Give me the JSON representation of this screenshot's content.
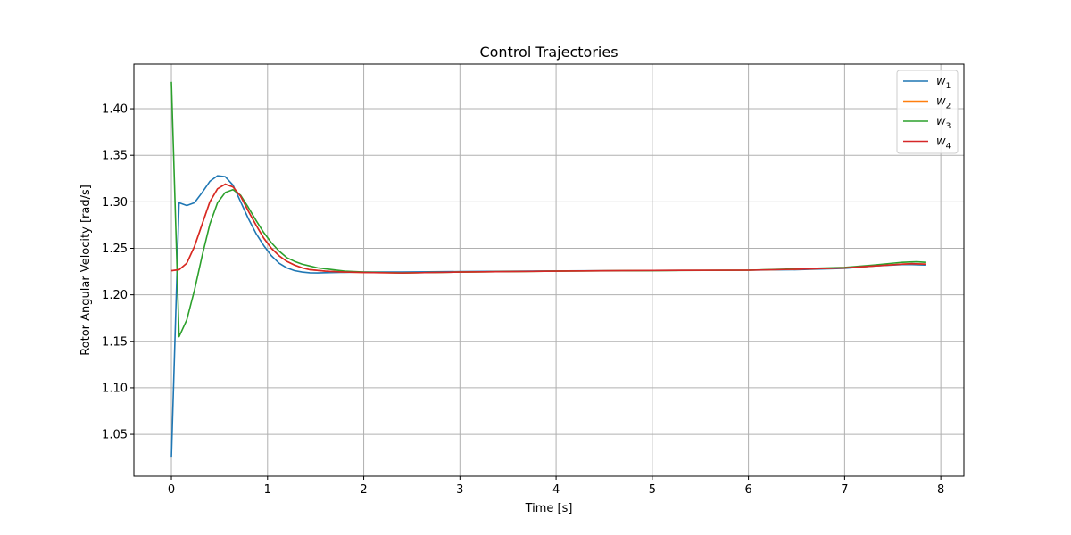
{
  "chart_data": {
    "type": "line",
    "title": "Control Trajectories",
    "xlabel": "Time [s]",
    "ylabel": "Rotor Angular Velocity [rad/s]",
    "xlim": [
      -0.39,
      8.24
    ],
    "ylim": [
      1.005,
      1.448
    ],
    "xticks": [
      0,
      1,
      2,
      3,
      4,
      5,
      6,
      7,
      8
    ],
    "xtick_labels": [
      "0",
      "1",
      "2",
      "3",
      "4",
      "5",
      "6",
      "7",
      "8"
    ],
    "yticks": [
      1.05,
      1.1,
      1.15,
      1.2,
      1.25,
      1.3,
      1.35,
      1.4
    ],
    "ytick_labels": [
      "1.05",
      "1.10",
      "1.15",
      "1.20",
      "1.25",
      "1.30",
      "1.35",
      "1.40"
    ],
    "grid": true,
    "legend_position": "top-right",
    "series": [
      {
        "name": "w",
        "subscript": "1",
        "color": "#1f77b4",
        "x": [
          0.0,
          0.08,
          0.16,
          0.24,
          0.32,
          0.4,
          0.48,
          0.56,
          0.64,
          0.72,
          0.8,
          0.88,
          0.96,
          1.04,
          1.12,
          1.2,
          1.28,
          1.36,
          1.44,
          1.52,
          1.6,
          1.8,
          2.0,
          2.4,
          3.0,
          4.0,
          5.0,
          6.0,
          6.5,
          7.0,
          7.3,
          7.6,
          7.7,
          7.84
        ],
        "y": [
          1.025,
          1.299,
          1.296,
          1.299,
          1.31,
          1.322,
          1.328,
          1.327,
          1.318,
          1.3,
          1.282,
          1.266,
          1.253,
          1.242,
          1.234,
          1.229,
          1.226,
          1.2245,
          1.2237,
          1.2236,
          1.2238,
          1.2242,
          1.2245,
          1.2245,
          1.225,
          1.2257,
          1.2262,
          1.2265,
          1.227,
          1.2285,
          1.231,
          1.2325,
          1.2325,
          1.232
        ]
      },
      {
        "name": "w",
        "subscript": "2",
        "color": "#ff7f0e",
        "x": [
          0.0,
          0.08,
          0.16,
          0.24,
          0.32,
          0.4,
          0.48,
          0.56,
          0.64,
          0.72,
          0.8,
          0.88,
          0.96,
          1.04,
          1.12,
          1.2,
          1.28,
          1.36,
          1.44,
          1.6,
          1.8,
          2.0,
          2.4,
          3.0,
          4.0,
          5.0,
          6.0,
          6.5,
          7.0,
          7.3,
          7.6,
          7.7,
          7.84
        ],
        "y": [
          1.226,
          1.227,
          1.234,
          1.252,
          1.276,
          1.3,
          1.314,
          1.319,
          1.316,
          1.306,
          1.29,
          1.275,
          1.261,
          1.25,
          1.242,
          1.236,
          1.232,
          1.229,
          1.227,
          1.2255,
          1.2245,
          1.224,
          1.2235,
          1.2245,
          1.2255,
          1.2262,
          1.2265,
          1.2275,
          1.229,
          1.231,
          1.233,
          1.2335,
          1.233
        ]
      },
      {
        "name": "w",
        "subscript": "3",
        "color": "#2ca02c",
        "x": [
          0.0,
          0.08,
          0.16,
          0.24,
          0.32,
          0.4,
          0.48,
          0.56,
          0.64,
          0.72,
          0.8,
          0.88,
          0.96,
          1.04,
          1.12,
          1.2,
          1.28,
          1.36,
          1.44,
          1.52,
          1.6,
          1.8,
          2.0,
          2.4,
          3.0,
          4.0,
          5.0,
          6.0,
          6.5,
          7.0,
          7.3,
          7.6,
          7.75,
          7.84
        ],
        "y": [
          1.429,
          1.155,
          1.173,
          1.205,
          1.242,
          1.276,
          1.299,
          1.31,
          1.313,
          1.307,
          1.294,
          1.28,
          1.267,
          1.256,
          1.247,
          1.24,
          1.236,
          1.233,
          1.231,
          1.229,
          1.228,
          1.2255,
          1.2245,
          1.2235,
          1.2245,
          1.2255,
          1.226,
          1.2265,
          1.228,
          1.2295,
          1.232,
          1.235,
          1.2355,
          1.235
        ]
      },
      {
        "name": "w",
        "subscript": "4",
        "color": "#d62728",
        "x": [
          0.0,
          0.08,
          0.16,
          0.24,
          0.32,
          0.4,
          0.48,
          0.56,
          0.64,
          0.72,
          0.8,
          0.88,
          0.96,
          1.04,
          1.12,
          1.2,
          1.28,
          1.36,
          1.44,
          1.6,
          1.8,
          2.0,
          2.4,
          3.0,
          4.0,
          5.0,
          6.0,
          6.5,
          7.0,
          7.3,
          7.6,
          7.7,
          7.84
        ],
        "y": [
          1.226,
          1.227,
          1.234,
          1.252,
          1.276,
          1.3,
          1.314,
          1.319,
          1.316,
          1.306,
          1.29,
          1.275,
          1.261,
          1.25,
          1.242,
          1.236,
          1.232,
          1.229,
          1.227,
          1.2255,
          1.2245,
          1.224,
          1.2235,
          1.2245,
          1.2255,
          1.2262,
          1.2265,
          1.2275,
          1.229,
          1.231,
          1.233,
          1.2335,
          1.233
        ]
      }
    ]
  }
}
